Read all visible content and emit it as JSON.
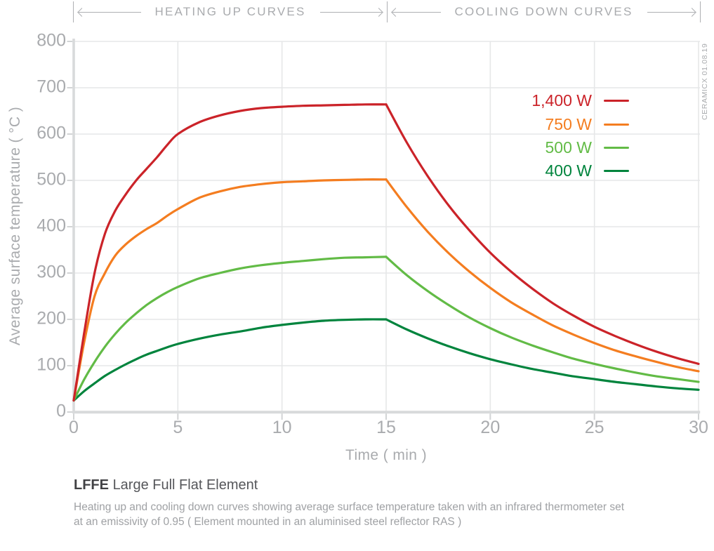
{
  "watermark": "CERAMICX 01.08.19",
  "caption": {
    "code": "LFFE",
    "name": "Large Full Flat Element",
    "description_line1": "Heating up and cooling down curves showing average surface temperature taken with an infrared thermometer set",
    "description_line2": "at an emissivity of 0.95  ( Element mounted in an aluminised steel reflector RAS )"
  },
  "colors": {
    "axis": "#d8dadb",
    "tick": "#d2d4d5",
    "grid": "#e6e7e8",
    "label_gray": "#a9abae"
  },
  "chart_data": {
    "type": "line",
    "title": "",
    "xlabel": "Time ( min )",
    "ylabel": "Average surface temperature ( °C )",
    "xlim": [
      0,
      30
    ],
    "ylim": [
      0,
      800
    ],
    "xticks": [
      0,
      5,
      10,
      15,
      20,
      25,
      30
    ],
    "yticks": [
      0,
      100,
      200,
      300,
      400,
      500,
      600,
      700,
      800
    ],
    "grid": true,
    "legend_position": "top-right",
    "sections": [
      {
        "label": "HEATING UP CURVES",
        "x_from": 0,
        "x_to": 15
      },
      {
        "label": "COOLING DOWN CURVES",
        "x_from": 15,
        "x_to": 30
      }
    ],
    "x": [
      0,
      0.5,
      1,
      1.5,
      2,
      2.5,
      3,
      3.5,
      4,
      4.5,
      5,
      6,
      7,
      8,
      9,
      10,
      11,
      12,
      13,
      14,
      15,
      16,
      17,
      18,
      19,
      20,
      21,
      22,
      23,
      24,
      25,
      26,
      27,
      28,
      29,
      30
    ],
    "series": [
      {
        "name": "1,400 W",
        "color": "#cb2329",
        "values": [
          25,
          170,
          300,
          385,
          435,
          470,
          500,
          525,
          550,
          577,
          600,
          625,
          640,
          650,
          656,
          659,
          661,
          662,
          663,
          664,
          664,
          581,
          509,
          446,
          392,
          344,
          303,
          267,
          235,
          208,
          184,
          164,
          146,
          130,
          116,
          104
        ]
      },
      {
        "name": "750 W",
        "color": "#f47d20",
        "values": [
          25,
          150,
          250,
          300,
          338,
          362,
          380,
          395,
          408,
          424,
          438,
          462,
          476,
          486,
          492,
          496,
          498,
          500,
          501,
          502,
          502,
          442,
          389,
          343,
          303,
          268,
          237,
          211,
          187,
          167,
          149,
          133,
          120,
          108,
          97,
          88
        ]
      },
      {
        "name": "500 W",
        "color": "#62bb46",
        "values": [
          25,
          70,
          108,
          141,
          169,
          193,
          213,
          231,
          246,
          259,
          270,
          288,
          300,
          310,
          317,
          322,
          326,
          330,
          333,
          334,
          335,
          295,
          261,
          231,
          204,
          181,
          161,
          144,
          129,
          115,
          104,
          94,
          85,
          77,
          71,
          65
        ]
      },
      {
        "name": "400 W",
        "color": "#00843d",
        "values": [
          25,
          45,
          62,
          78,
          91,
          103,
          114,
          124,
          132,
          140,
          147,
          158,
          167,
          174,
          182,
          188,
          193,
          197,
          199,
          200,
          200,
          178,
          159,
          142,
          127,
          114,
          103,
          93,
          85,
          77,
          71,
          65,
          60,
          55,
          51,
          48
        ]
      }
    ]
  }
}
